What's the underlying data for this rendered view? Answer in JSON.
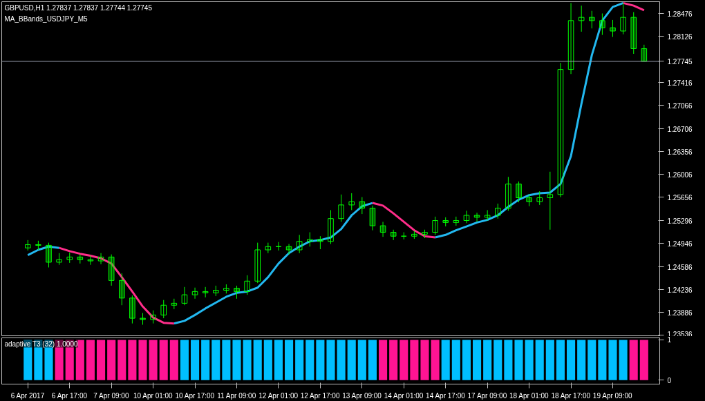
{
  "chart_data": [
    {
      "type": "candlestick",
      "title": "GBPUSD,H1  1.27837 1.27837 1.27744 1.27745",
      "subtitle": "MA_BBands_USDJPY_M5",
      "color": "#00ff00",
      "ohlc": [
        [
          1.2488,
          1.25,
          1.2484,
          1.2493
        ],
        [
          1.2493,
          1.2499,
          1.2485,
          1.2492
        ],
        [
          1.2492,
          1.2496,
          1.2458,
          1.2466
        ],
        [
          1.2466,
          1.248,
          1.2462,
          1.247
        ],
        [
          1.247,
          1.2481,
          1.2465,
          1.2474
        ],
        [
          1.2474,
          1.2478,
          1.2464,
          1.247
        ],
        [
          1.247,
          1.2476,
          1.2462,
          1.2468
        ],
        [
          1.2468,
          1.248,
          1.2463,
          1.2474
        ],
        [
          1.2474,
          1.2478,
          1.243,
          1.2438
        ],
        [
          1.2438,
          1.2449,
          1.24,
          1.2411
        ],
        [
          1.2411,
          1.2415,
          1.2372,
          1.238
        ],
        [
          1.238,
          1.2388,
          1.237,
          1.2378
        ],
        [
          1.2378,
          1.2392,
          1.2372,
          1.2385
        ],
        [
          1.2385,
          1.2408,
          1.238,
          1.24
        ],
        [
          1.24,
          1.241,
          1.2394,
          1.2403
        ],
        [
          1.2403,
          1.2428,
          1.24,
          1.2416
        ],
        [
          1.2416,
          1.2427,
          1.241,
          1.2421
        ],
        [
          1.2421,
          1.2428,
          1.2412,
          1.2419
        ],
        [
          1.2419,
          1.243,
          1.2414,
          1.2423
        ],
        [
          1.2423,
          1.2432,
          1.2418,
          1.2426
        ],
        [
          1.2426,
          1.243,
          1.241,
          1.2421
        ],
        [
          1.2421,
          1.2446,
          1.2416,
          1.2437
        ],
        [
          1.2437,
          1.2496,
          1.2434,
          1.2485
        ],
        [
          1.2485,
          1.2496,
          1.248,
          1.249
        ],
        [
          1.249,
          1.2497,
          1.2484,
          1.249
        ],
        [
          1.249,
          1.2494,
          1.2478,
          1.2485
        ],
        [
          1.2485,
          1.2508,
          1.248,
          1.2498
        ],
        [
          1.2498,
          1.2512,
          1.249,
          1.2501
        ],
        [
          1.2501,
          1.2506,
          1.2486,
          1.2498
        ],
        [
          1.2498,
          1.2546,
          1.2494,
          1.2533
        ],
        [
          1.2533,
          1.257,
          1.2528,
          1.2554
        ],
        [
          1.2554,
          1.2572,
          1.2546,
          1.2559
        ],
        [
          1.2559,
          1.2566,
          1.254,
          1.2549
        ],
        [
          1.2549,
          1.2553,
          1.2515,
          1.2522
        ],
        [
          1.2522,
          1.2528,
          1.2505,
          1.2512
        ],
        [
          1.2512,
          1.2516,
          1.25,
          1.2506
        ],
        [
          1.2506,
          1.2512,
          1.2501,
          1.2506
        ],
        [
          1.2506,
          1.2514,
          1.2502,
          1.2509
        ],
        [
          1.2509,
          1.2516,
          1.2503,
          1.2512
        ],
        [
          1.2512,
          1.2536,
          1.2508,
          1.253
        ],
        [
          1.253,
          1.2535,
          1.2521,
          1.2527
        ],
        [
          1.2527,
          1.2536,
          1.2522,
          1.253
        ],
        [
          1.253,
          1.2545,
          1.2526,
          1.2538
        ],
        [
          1.2538,
          1.2542,
          1.2528,
          1.2535
        ],
        [
          1.2535,
          1.2546,
          1.253,
          1.2538
        ],
        [
          1.2538,
          1.2556,
          1.2533,
          1.2549
        ],
        [
          1.2549,
          1.2597,
          1.2545,
          1.2586
        ],
        [
          1.2586,
          1.259,
          1.2558,
          1.2565
        ],
        [
          1.2565,
          1.257,
          1.2552,
          1.2559
        ],
        [
          1.2559,
          1.2575,
          1.2554,
          1.2565
        ],
        [
          1.2565,
          1.2605,
          1.2516,
          1.257
        ],
        [
          1.257,
          1.2772,
          1.2566,
          1.2762
        ],
        [
          1.2762,
          1.2864,
          1.2755,
          1.2837
        ],
        [
          1.2837,
          1.286,
          1.282,
          1.2842
        ],
        [
          1.2842,
          1.2852,
          1.2825,
          1.2837
        ],
        [
          1.2837,
          1.2848,
          1.2815,
          1.2826
        ],
        [
          1.2826,
          1.2838,
          1.2812,
          1.2821
        ],
        [
          1.2821,
          1.2864,
          1.2816,
          1.2842
        ],
        [
          1.2842,
          1.285,
          1.2786,
          1.2794
        ],
        [
          1.2794,
          1.28,
          1.27744,
          1.27745
        ]
      ],
      "series": [
        {
          "type": "line",
          "color": "#22b8f0",
          "values": [
            1.2477,
            1.2485,
            1.249,
            1.2488,
            null,
            null,
            null,
            null,
            null,
            null,
            null,
            null,
            null,
            null,
            1.2372,
            1.2376,
            1.2385,
            1.2395,
            1.2404,
            1.2413,
            1.2419,
            1.2421,
            1.2427,
            1.2443,
            1.2464,
            1.248,
            1.249,
            1.2498,
            1.25,
            1.2504,
            1.2517,
            1.2538,
            1.2552,
            1.2557,
            null,
            null,
            null,
            null,
            null,
            1.2504,
            1.2508,
            1.2515,
            1.2521,
            1.2527,
            1.2531,
            1.2538,
            1.2551,
            1.2562,
            1.2569,
            1.2572,
            1.2573,
            1.2586,
            1.2629,
            1.2709,
            1.2784,
            1.2837,
            1.2858,
            1.2864,
            null,
            null
          ]
        },
        {
          "type": "line",
          "color": "#ff2d8a",
          "values": [
            null,
            null,
            null,
            1.2488,
            1.2483,
            1.2479,
            1.2476,
            1.2472,
            1.2464,
            1.2443,
            1.2421,
            1.2398,
            1.2381,
            1.2373,
            1.2372,
            null,
            null,
            null,
            null,
            null,
            null,
            null,
            null,
            null,
            null,
            null,
            null,
            null,
            null,
            null,
            null,
            null,
            null,
            1.2557,
            1.2553,
            1.2541,
            1.2528,
            1.2515,
            1.2506,
            1.2504,
            null,
            null,
            null,
            null,
            null,
            null,
            null,
            null,
            null,
            null,
            null,
            null,
            null,
            null,
            null,
            null,
            null,
            1.2864,
            1.286,
            1.2853
          ]
        }
      ],
      "ylim": [
        1.2352,
        1.2866
      ],
      "yticks": [
        1.23536,
        1.23886,
        1.24236,
        1.24586,
        1.24946,
        1.25296,
        1.25656,
        1.26006,
        1.26356,
        1.26706,
        1.27066,
        1.27416,
        1.28126,
        1.28476
      ],
      "ref_lines": [
        {
          "axis": "y",
          "value": 1.27745,
          "label": "1.27745",
          "color": "#a0a8b8"
        }
      ],
      "grid": false
    },
    {
      "type": "bar",
      "title": "adaptive T3 (32) 1.0000",
      "categories": [
        "6 Apr 2017",
        null,
        null,
        null,
        "6 Apr 17:00",
        null,
        null,
        null,
        "7 Apr 09:00",
        null,
        null,
        null,
        "10 Apr 01:00",
        null,
        null,
        null,
        "10 Apr 17:00",
        null,
        null,
        null,
        "11 Apr 09:00",
        null,
        null,
        null,
        "12 Apr 01:00",
        null,
        null,
        null,
        "12 Apr 17:00",
        null,
        null,
        null,
        "13 Apr 09:00",
        null,
        null,
        null,
        "14 Apr 01:00",
        null,
        null,
        null,
        "14 Apr 17:00",
        null,
        null,
        null,
        "17 Apr 09:00",
        null,
        null,
        null,
        "18 Apr 01:00",
        null,
        null,
        null,
        "18 Apr 17:00",
        null,
        null,
        null,
        "19 Apr 09:00",
        null,
        null,
        null
      ],
      "values": [
        1,
        1,
        1,
        1,
        1,
        1,
        1,
        1,
        1,
        1,
        1,
        1,
        1,
        1,
        1,
        1,
        1,
        1,
        1,
        1,
        1,
        1,
        1,
        1,
        1,
        1,
        1,
        1,
        1,
        1,
        1,
        1,
        1,
        1,
        1,
        1,
        1,
        1,
        1,
        1,
        1,
        1,
        1,
        1,
        1,
        1,
        1,
        1,
        1,
        1,
        1,
        1,
        1,
        1,
        1,
        1,
        1,
        1,
        1,
        1
      ],
      "colors": [
        "#00bfff",
        "#00bfff",
        "#00bfff",
        "#ff1493",
        "#ff1493",
        "#ff1493",
        "#ff1493",
        "#ff1493",
        "#ff1493",
        "#ff1493",
        "#ff1493",
        "#ff1493",
        "#ff1493",
        "#ff1493",
        "#ff1493",
        "#00bfff",
        "#00bfff",
        "#00bfff",
        "#00bfff",
        "#00bfff",
        "#00bfff",
        "#00bfff",
        "#00bfff",
        "#00bfff",
        "#00bfff",
        "#00bfff",
        "#00bfff",
        "#00bfff",
        "#00bfff",
        "#00bfff",
        "#00bfff",
        "#00bfff",
        "#00bfff",
        "#00bfff",
        "#ff1493",
        "#ff1493",
        "#ff1493",
        "#ff1493",
        "#ff1493",
        "#ff1493",
        "#00bfff",
        "#00bfff",
        "#00bfff",
        "#00bfff",
        "#00bfff",
        "#00bfff",
        "#00bfff",
        "#00bfff",
        "#00bfff",
        "#00bfff",
        "#00bfff",
        "#00bfff",
        "#00bfff",
        "#00bfff",
        "#00bfff",
        "#00bfff",
        "#00bfff",
        "#00bfff",
        "#ff1493",
        "#ff1493"
      ],
      "ylim": [
        -0.1,
        1.05
      ],
      "yticks": [
        0,
        1
      ],
      "grid": false
    }
  ]
}
